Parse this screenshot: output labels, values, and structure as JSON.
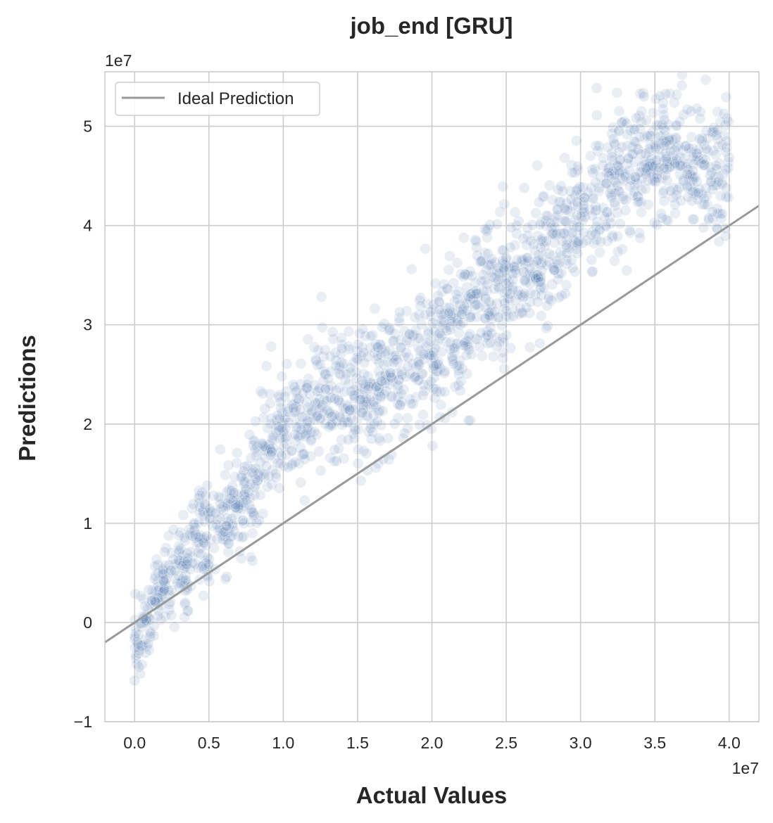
{
  "chart_data": {
    "type": "scatter",
    "title": "job_end [GRU]",
    "xlabel": "Actual Values",
    "ylabel": "Predictions",
    "x_offset_label": "1e7",
    "y_offset_label": "1e7",
    "xlim": [
      -0.2,
      4.2
    ],
    "ylim": [
      -1.0,
      5.55
    ],
    "x_ticks": [
      0.0,
      0.5,
      1.0,
      1.5,
      2.0,
      2.5,
      3.0,
      3.5,
      4.0
    ],
    "x_tick_labels": [
      "0.0",
      "0.5",
      "1.0",
      "1.5",
      "2.0",
      "2.5",
      "3.0",
      "3.5",
      "4.0"
    ],
    "y_ticks": [
      -1,
      0,
      1,
      2,
      3,
      4,
      5
    ],
    "y_tick_labels": [
      "−1",
      "0",
      "1",
      "2",
      "3",
      "4",
      "5"
    ],
    "grid": true,
    "legend_position": "top-left",
    "series": [
      {
        "name": "Ideal Prediction",
        "kind": "line",
        "color": "#999999",
        "x": [
          -0.2,
          4.2
        ],
        "y": [
          -0.2,
          4.2
        ]
      },
      {
        "kind": "scatter",
        "color": "#4c72b0",
        "alpha": 0.12,
        "trend": {
          "x": [
            0.0,
            0.1,
            0.2,
            0.3,
            0.4,
            0.5,
            0.6,
            0.7,
            0.8,
            0.85,
            0.9,
            1.0,
            1.1,
            1.2,
            1.3,
            1.4,
            1.5,
            1.6,
            1.8,
            2.0,
            2.2,
            2.4,
            2.5,
            2.6,
            2.7,
            2.8,
            3.0,
            3.2,
            3.3,
            3.4,
            3.5,
            3.6,
            3.7,
            3.8,
            3.9,
            4.0
          ],
          "y": [
            -0.15,
            0.15,
            0.4,
            0.55,
            0.75,
            0.9,
            1.05,
            1.2,
            1.35,
            1.75,
            1.85,
            1.95,
            2.05,
            2.15,
            2.25,
            2.3,
            2.25,
            2.35,
            2.55,
            2.8,
            3.05,
            3.3,
            3.4,
            3.5,
            3.6,
            3.75,
            4.05,
            4.3,
            4.5,
            4.65,
            4.7,
            4.7,
            4.65,
            4.55,
            4.5,
            4.6
          ]
        },
        "spread": 0.35,
        "point_count": 1800
      }
    ]
  }
}
